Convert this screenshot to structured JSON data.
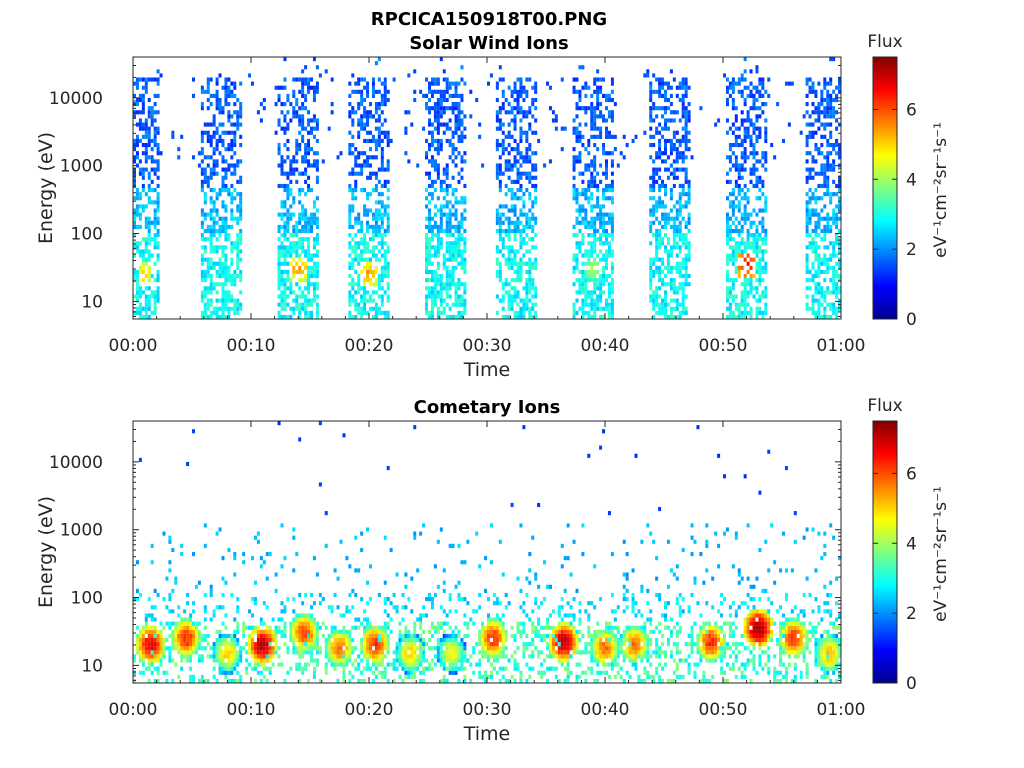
{
  "figure_title": "RPCICA150918T00.PNG",
  "chart_data": [
    {
      "type": "heatmap",
      "title": "Solar Wind Ions",
      "xlabel": "Time",
      "ylabel": "Energy (eV)",
      "x_tick_labels": [
        "00:00",
        "00:10",
        "00:20",
        "00:30",
        "00:40",
        "00:50",
        "01:00"
      ],
      "x_range_minutes": [
        0,
        60
      ],
      "y_scale": "log",
      "y_range": [
        5.5,
        40000
      ],
      "y_ticks": [
        10,
        100,
        1000,
        10000
      ],
      "y_tick_labels": [
        "10",
        "100",
        "1000",
        "10000"
      ],
      "colorbar": {
        "title": "Flux",
        "label": "eV⁻¹cm⁻²sr⁻¹s⁻¹",
        "range": [
          0,
          7.5
        ],
        "ticks": [
          0,
          2,
          4,
          6
        ],
        "tick_labels": [
          "0",
          "2",
          "4",
          "6"
        ],
        "colormap": "jet"
      },
      "bursts_minutes": [
        {
          "center": 1.0,
          "width": 2.0,
          "hot_energy": 25,
          "peak_flux": 5.2
        },
        {
          "center": 7.5,
          "width": 3.0,
          "hot_energy": 0,
          "peak_flux": 3.2
        },
        {
          "center": 14.0,
          "width": 3.0,
          "hot_energy": 30,
          "peak_flux": 5.5
        },
        {
          "center": 20.0,
          "width": 3.0,
          "hot_energy": 25,
          "peak_flux": 5.5
        },
        {
          "center": 26.5,
          "width": 3.0,
          "hot_energy": 0,
          "peak_flux": 3.2
        },
        {
          "center": 32.5,
          "width": 3.0,
          "hot_energy": 0,
          "peak_flux": 3.2
        },
        {
          "center": 39.0,
          "width": 3.0,
          "hot_energy": 30,
          "peak_flux": 4.2
        },
        {
          "center": 45.5,
          "width": 3.0,
          "hot_energy": 0,
          "peak_flux": 3.2
        },
        {
          "center": 52.0,
          "width": 3.0,
          "hot_energy": 35,
          "peak_flux": 6.5
        },
        {
          "center": 58.5,
          "width": 2.5,
          "hot_energy": 0,
          "peak_flux": 3.2
        }
      ]
    },
    {
      "type": "heatmap",
      "title": "Cometary Ions",
      "xlabel": "Time",
      "ylabel": "Energy (eV)",
      "x_tick_labels": [
        "00:00",
        "00:10",
        "00:20",
        "00:30",
        "00:40",
        "00:50",
        "01:00"
      ],
      "x_range_minutes": [
        0,
        60
      ],
      "y_scale": "log",
      "y_range": [
        5.5,
        40000
      ],
      "y_ticks": [
        10,
        100,
        1000,
        10000
      ],
      "y_tick_labels": [
        "10",
        "100",
        "1000",
        "10000"
      ],
      "colorbar": {
        "title": "Flux",
        "label": "eV⁻¹cm⁻²sr⁻¹s⁻¹",
        "range": [
          0,
          7.5
        ],
        "ticks": [
          0,
          2,
          4,
          6
        ],
        "tick_labels": [
          "0",
          "2",
          "4",
          "6"
        ],
        "colormap": "jet"
      },
      "hot_spots_minutes": [
        {
          "t": 1.5,
          "e": 20,
          "peak_flux": 6.5
        },
        {
          "t": 4.5,
          "e": 25,
          "peak_flux": 6.0
        },
        {
          "t": 8.0,
          "e": 15,
          "peak_flux": 4.8
        },
        {
          "t": 11.0,
          "e": 20,
          "peak_flux": 6.8
        },
        {
          "t": 14.5,
          "e": 30,
          "peak_flux": 5.8
        },
        {
          "t": 17.5,
          "e": 18,
          "peak_flux": 5.5
        },
        {
          "t": 20.5,
          "e": 20,
          "peak_flux": 6.0
        },
        {
          "t": 23.5,
          "e": 15,
          "peak_flux": 4.8
        },
        {
          "t": 27.0,
          "e": 15,
          "peak_flux": 4.5
        },
        {
          "t": 30.5,
          "e": 25,
          "peak_flux": 6.0
        },
        {
          "t": 36.5,
          "e": 22,
          "peak_flux": 6.8
        },
        {
          "t": 40.0,
          "e": 18,
          "peak_flux": 5.5
        },
        {
          "t": 42.5,
          "e": 20,
          "peak_flux": 5.5
        },
        {
          "t": 49.0,
          "e": 22,
          "peak_flux": 6.0
        },
        {
          "t": 53.0,
          "e": 35,
          "peak_flux": 7.0
        },
        {
          "t": 56.0,
          "e": 25,
          "peak_flux": 6.0
        },
        {
          "t": 59.0,
          "e": 15,
          "peak_flux": 5.0
        }
      ]
    }
  ]
}
